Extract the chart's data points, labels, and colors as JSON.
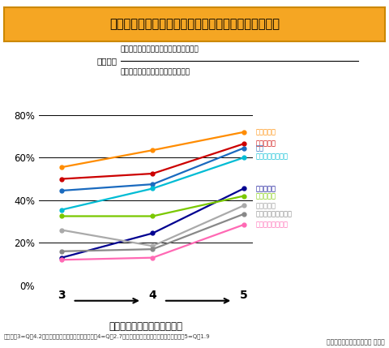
{
  "title": "各種疾患の改善率と転居した住宅の断熱性能との関係",
  "formula_label": "改善率＝",
  "formula_numerator": "新しい住まいで症状が出なくなった人数",
  "formula_denominator": "以前の住まいで症状が出ていた人数",
  "xlabel": "転居後の住宅の断熱グレード",
  "footnote": "グレード3=Q値4.2（新省エネ基準レベル）、グレード4=Q値2.7（次世代省エネ基準レベル）、グレード5=Q値1.9",
  "source": "資料提供：近畿大学　岩前 篤教授",
  "x_ticks": [
    3,
    4,
    5
  ],
  "ylim": [
    0.0,
    0.85
  ],
  "yticks": [
    0.0,
    0.2,
    0.4,
    0.6,
    0.8
  ],
  "ytick_labels": [
    "0%",
    "20%",
    "40%",
    "60%",
    "80%"
  ],
  "background_color": "#ffffff",
  "title_bg_color": "#f5a623",
  "series": [
    {
      "name": "気管支喘息",
      "color": "#ff8c00",
      "values": [
        0.555,
        0.635,
        0.72
      ],
      "label_color": "#ff8c00"
    },
    {
      "name": "のどの痛み",
      "color": "#cc0000",
      "values": [
        0.5,
        0.525,
        0.665
      ],
      "label_color": "#cc0000"
    },
    {
      "name": "せき",
      "color": "#1a6abf",
      "values": [
        0.445,
        0.475,
        0.645
      ],
      "label_color": "#1a6abf"
    },
    {
      "name": "アトピー性皮膚炎",
      "color": "#00bcd4",
      "values": [
        0.355,
        0.455,
        0.6
      ],
      "label_color": "#00bcd4"
    },
    {
      "name": "手足の冷え",
      "color": "#000090",
      "values": [
        0.13,
        0.245,
        0.455
      ],
      "label_color": "#000090"
    },
    {
      "name": "肌のかゆみ",
      "color": "#7ac800",
      "values": [
        0.325,
        0.325,
        0.42
      ],
      "label_color": "#7ac800"
    },
    {
      "name": "目のかゆみ",
      "color": "#aaaaaa",
      "values": [
        0.26,
        0.185,
        0.375
      ],
      "label_color": "#999999"
    },
    {
      "name": "アレルギー性結膜炎",
      "color": "#888888",
      "values": [
        0.16,
        0.17,
        0.335
      ],
      "label_color": "#888888"
    },
    {
      "name": "アレルギー性鼻炎",
      "color": "#ff69b4",
      "values": [
        0.12,
        0.13,
        0.285
      ],
      "label_color": "#ff69b4"
    }
  ]
}
